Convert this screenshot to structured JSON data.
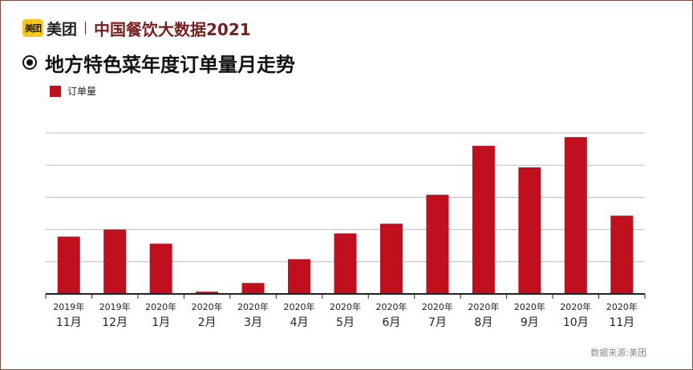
{
  "header": {
    "logo_mark": "美团",
    "brand": "美团",
    "title": "中国餐饮大数据2021"
  },
  "subtitle": "地方特色菜年度订单量月走势",
  "source": "数据来源:美团",
  "colors": {
    "bar": "#c0101e",
    "grid": "#bdbdbd",
    "axis": "#222222",
    "title": "#7a1f1f"
  },
  "chart_data": {
    "type": "bar",
    "title": "地方特色菜年度订单量月走势",
    "legend": [
      "订单量"
    ],
    "legend_position": "top-left",
    "categories_year": [
      "2019年",
      "2019年",
      "2020年",
      "2020年",
      "2020年",
      "2020年",
      "2020年",
      "2020年",
      "2020年",
      "2020年",
      "2020年",
      "2020年",
      "2020年"
    ],
    "categories_month": [
      "11月",
      "12月",
      "1月",
      "2月",
      "3月",
      "4月",
      "5月",
      "6月",
      "7月",
      "8月",
      "9月",
      "10月",
      "11月"
    ],
    "series": [
      {
        "name": "订单量",
        "values": [
          1.78,
          2.0,
          1.56,
          0.07,
          0.34,
          1.08,
          1.88,
          2.18,
          3.08,
          4.6,
          3.93,
          4.87,
          2.43
        ]
      }
    ],
    "ylim": [
      0,
      5
    ],
    "yticks": [
      0,
      1,
      2,
      3,
      4,
      5
    ],
    "ylabel": "",
    "xlabel": "",
    "grid": true
  }
}
